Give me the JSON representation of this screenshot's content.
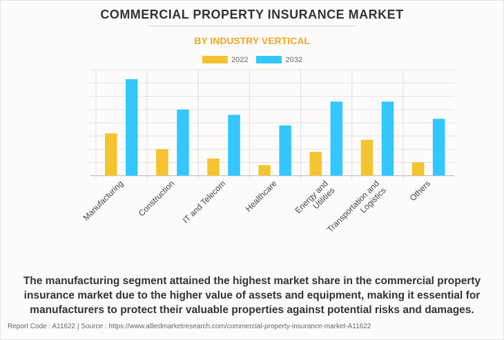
{
  "header": {
    "title": "COMMERCIAL PROPERTY INSURANCE MARKET",
    "subtitle": "BY INDUSTRY VERTICAL"
  },
  "colors": {
    "series_2022": "#f4c430",
    "series_2032": "#33c6ff",
    "title": "#333333",
    "subtitle": "#f5a623",
    "grid": "#e2e2e2",
    "axis": "#bdbdbd"
  },
  "chart_data": {
    "type": "bar",
    "title": "COMMERCIAL PROPERTY INSURANCE MARKET",
    "subtitle": "BY INDUSTRY VERTICAL",
    "xlabel": "",
    "ylabel": "",
    "y_units": "relative (gridline units, no y-axis labels shown)",
    "ylim": [
      0,
      8
    ],
    "grid": true,
    "legend_position": "top-center",
    "categories": [
      [
        "Manufacturing"
      ],
      [
        "Construction"
      ],
      [
        "IT and Telecom"
      ],
      [
        "Healthcare"
      ],
      [
        "Energy and",
        "Utilities"
      ],
      [
        "Transportation and",
        "Logistics"
      ],
      [
        "Others"
      ]
    ],
    "series": [
      {
        "name": "2022",
        "values": [
          3.2,
          2.0,
          1.3,
          0.8,
          1.8,
          2.7,
          1.0
        ]
      },
      {
        "name": "2032",
        "values": [
          7.3,
          5.0,
          4.6,
          3.8,
          5.6,
          5.6,
          4.3
        ]
      }
    ]
  },
  "caption": "The manufacturing segment attained the highest market share in the commercial property insurance market due to the higher value of assets and equipment, making it essential for manufacturers to protect their valuable properties against potential risks and damages.",
  "footer": "Report Code : A11622  |  Source : https://www.alliedmarketresearch.com/commercial-property-insurance-market-A11622"
}
